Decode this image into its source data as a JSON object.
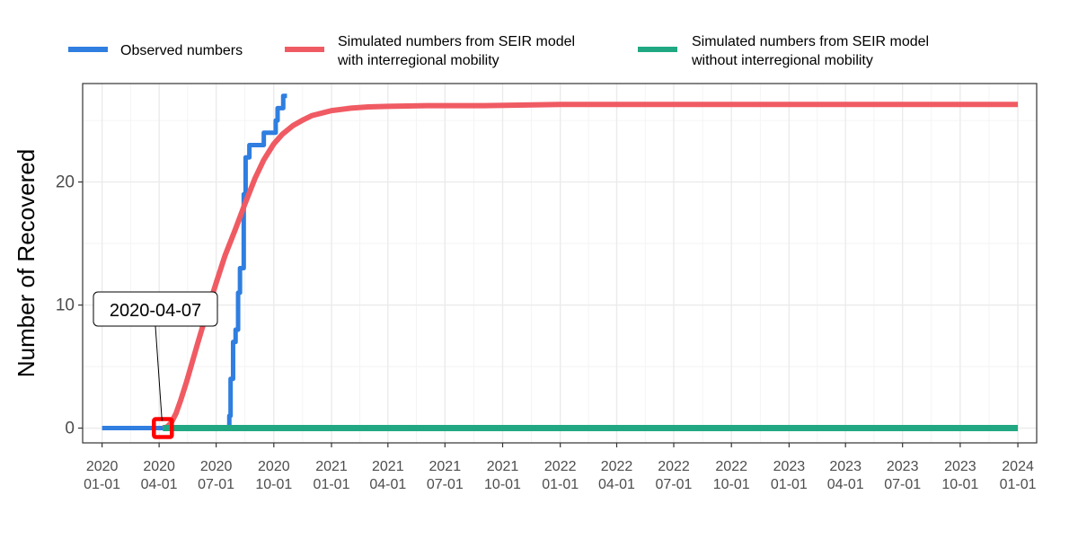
{
  "chart_data": {
    "type": "line",
    "ylabel": "Number of Recovered",
    "xlabel": "",
    "ylim": [
      -1.2,
      28.0
    ],
    "xlim": [
      "2019-12-01",
      "2024-01-31"
    ],
    "y_ticks": [
      0,
      10,
      20
    ],
    "x_ticks": [
      {
        "date": "2020-01-01",
        "label": [
          "2020",
          "01-01"
        ]
      },
      {
        "date": "2020-04-01",
        "label": [
          "2020",
          "04-01"
        ]
      },
      {
        "date": "2020-07-01",
        "label": [
          "2020",
          "07-01"
        ]
      },
      {
        "date": "2020-10-01",
        "label": [
          "2020",
          "10-01"
        ]
      },
      {
        "date": "2021-01-01",
        "label": [
          "2021",
          "01-01"
        ]
      },
      {
        "date": "2021-04-01",
        "label": [
          "2021",
          "04-01"
        ]
      },
      {
        "date": "2021-07-01",
        "label": [
          "2021",
          "07-01"
        ]
      },
      {
        "date": "2021-10-01",
        "label": [
          "2021",
          "10-01"
        ]
      },
      {
        "date": "2022-01-01",
        "label": [
          "2022",
          "01-01"
        ]
      },
      {
        "date": "2022-04-01",
        "label": [
          "2022",
          "04-01"
        ]
      },
      {
        "date": "2022-07-01",
        "label": [
          "2022",
          "07-01"
        ]
      },
      {
        "date": "2022-10-01",
        "label": [
          "2022",
          "10-01"
        ]
      },
      {
        "date": "2023-01-01",
        "label": [
          "2023",
          "01-01"
        ]
      },
      {
        "date": "2023-04-01",
        "label": [
          "2023",
          "04-01"
        ]
      },
      {
        "date": "2023-07-01",
        "label": [
          "2023",
          "07-01"
        ]
      },
      {
        "date": "2023-10-01",
        "label": [
          "2023",
          "10-01"
        ]
      },
      {
        "date": "2024-01-01",
        "label": [
          "2024",
          "01-01"
        ]
      }
    ],
    "grid": true,
    "legend_position": "top",
    "series": [
      {
        "name": "Observed numbers",
        "color": "#2f7ee0",
        "x": [
          "2020-01-01",
          "2020-04-07",
          "2020-07-21",
          "2020-07-22",
          "2020-07-24",
          "2020-07-27",
          "2020-07-28",
          "2020-07-31",
          "2020-08-01",
          "2020-08-03",
          "2020-08-05",
          "2020-08-07",
          "2020-08-08",
          "2020-08-10",
          "2020-08-14",
          "2020-08-16",
          "2020-08-17",
          "2020-08-22",
          "2020-08-23",
          "2020-08-24",
          "2020-08-26",
          "2020-08-27",
          "2020-09-02",
          "2020-09-05",
          "2020-09-06",
          "2020-09-08",
          "2020-09-10",
          "2020-09-11",
          "2020-09-12",
          "2020-09-15",
          "2020-09-20",
          "2020-09-22",
          "2020-10-01",
          "2020-10-04",
          "2020-10-05",
          "2020-10-07",
          "2020-10-12",
          "2020-10-15",
          "2020-10-16",
          "2020-10-18",
          "2020-10-22"
        ],
        "y": [
          0,
          0,
          0,
          1,
          4,
          4,
          7,
          7,
          8,
          8,
          11,
          11,
          13,
          13,
          19,
          19,
          22,
          22,
          23,
          23,
          23,
          23,
          23,
          23,
          23,
          23,
          23,
          23,
          23,
          24,
          24,
          24,
          24,
          25,
          25,
          26,
          26,
          26,
          27,
          27,
          27
        ]
      },
      {
        "name": "Simulated numbers from SEIR model\nwith interregional mobility",
        "color": "#f05b63",
        "x": [
          "2020-04-07",
          "2020-04-14",
          "2020-04-21",
          "2020-04-28",
          "2020-05-05",
          "2020-05-15",
          "2020-06-01",
          "2020-06-15",
          "2020-07-01",
          "2020-07-15",
          "2020-08-01",
          "2020-08-15",
          "2020-09-01",
          "2020-09-15",
          "2020-10-01",
          "2020-10-15",
          "2020-11-01",
          "2020-11-15",
          "2020-12-01",
          "2021-01-01",
          "2021-02-01",
          "2021-03-01",
          "2021-04-01",
          "2021-06-01",
          "2021-09-01",
          "2022-01-01",
          "2023-01-01",
          "2024-01-01"
        ],
        "y": [
          0,
          0.1,
          0.5,
          1.2,
          2.2,
          3.8,
          6.8,
          9.2,
          11.8,
          14.0,
          16.2,
          18.1,
          20.3,
          21.8,
          23.1,
          23.9,
          24.6,
          25.0,
          25.4,
          25.8,
          26.0,
          26.1,
          26.15,
          26.2,
          26.2,
          26.3,
          26.3,
          26.3
        ]
      },
      {
        "name": "Simulated numbers from SEIR model\nwithout interregional mobility",
        "color": "#21a883",
        "x": [
          "2020-04-07",
          "2024-01-01"
        ],
        "y": [
          0,
          0
        ]
      }
    ],
    "annotations": [
      {
        "text": "2020-04-07",
        "date": "2020-04-07",
        "value": 0
      }
    ]
  }
}
